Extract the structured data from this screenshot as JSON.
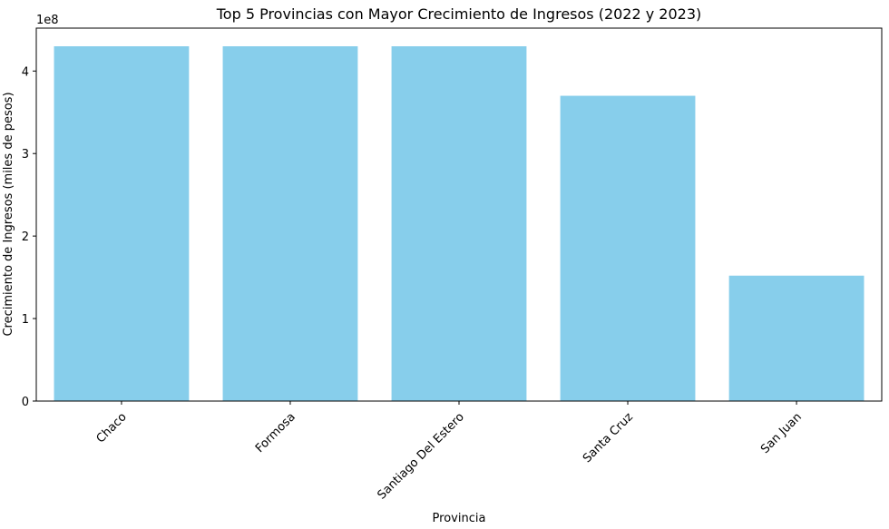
{
  "chart_data": {
    "type": "bar",
    "title": "Top 5 Provincias con Mayor Crecimiento de Ingresos (2022 y 2023)",
    "xlabel": "Provincia",
    "ylabel": "Crecimiento de Ingresos (miles de pesos)",
    "y_offset_label": "1e8",
    "categories": [
      "Chaco",
      "Formosa",
      "Santiago Del Estero",
      "Santa Cruz",
      "San Juan"
    ],
    "values": [
      430000000,
      430000000,
      430000000,
      370000000,
      152000000
    ],
    "ylim": [
      0,
      452000000
    ],
    "yticks": [
      0,
      100000000,
      200000000,
      300000000,
      400000000
    ],
    "ytick_labels": [
      "0",
      "1",
      "2",
      "3",
      "4"
    ],
    "bar_color": "#87ceeb",
    "grid": false,
    "legend": "none"
  }
}
